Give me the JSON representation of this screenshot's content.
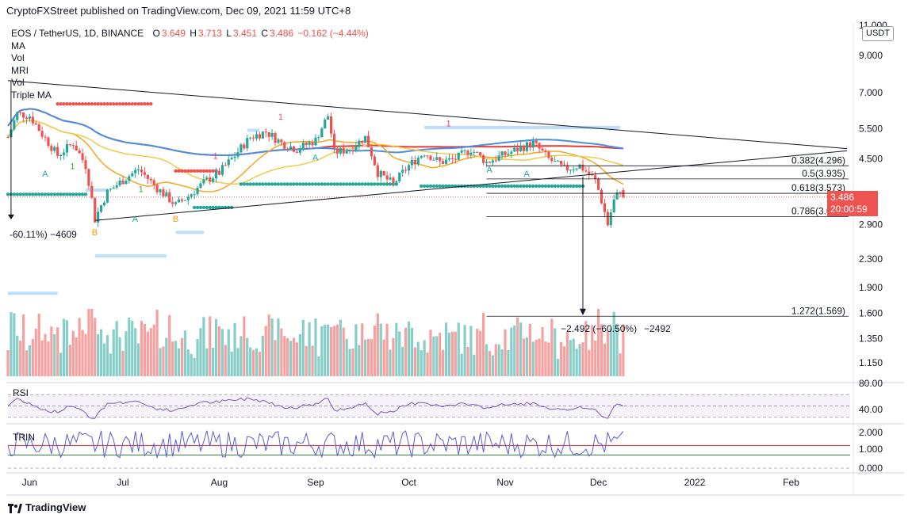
{
  "header": {
    "publisher": "CryptoFXStreet published on TradingView.com, Dec 09, 2021 11:59 UTC+8",
    "symbol": "EOS / TetherUS, 1D, BINANCE",
    "ohlc": {
      "o_label": "O",
      "o": "3.649",
      "h_label": "H",
      "h": "3.713",
      "l_label": "L",
      "l": "3.451",
      "c_label": "C",
      "c": "3.486",
      "change": "−0.162 (−4.44%)"
    },
    "indicators": [
      "MA",
      "Vol",
      "MRI",
      "Vol",
      "Triple MA"
    ]
  },
  "price_axis": {
    "currency": "USDT",
    "ticks": [
      "11.000",
      "9.000",
      "7.000",
      "5.500",
      "4.500",
      "3.486",
      "2.900",
      "2.300",
      "1.900",
      "1.600",
      "1.350",
      "1.150"
    ],
    "last_price": "3.486",
    "countdown": "20:00:59"
  },
  "time_axis": [
    "Jun",
    "Jul",
    "Aug",
    "Sep",
    "Oct",
    "Nov",
    "Dec",
    "2022",
    "Feb"
  ],
  "annotations": {
    "left_measure": "-60.11%) −4609",
    "right_measure_left": "−2.492 (−60.50%)",
    "right_measure_right": "−2492",
    "fib": [
      {
        "label": "0.382(4.296)"
      },
      {
        "label": "0.5(3.935)"
      },
      {
        "label": "0.618(3.573)"
      },
      {
        "label": "0.786(3.058)"
      },
      {
        "label": "1.272(1.569)"
      }
    ],
    "signals": [
      "A",
      "A",
      "A",
      "A",
      "A",
      "B",
      "B",
      "1",
      "1",
      "1",
      "1",
      "1"
    ]
  },
  "rsi": {
    "name": "RSI",
    "ticks": [
      "80.00",
      "40.00"
    ]
  },
  "trin": {
    "name": "TRIN",
    "ticks": [
      "2.000",
      "1.000",
      "0.000"
    ]
  },
  "footer": {
    "brand": "TradingView"
  },
  "colors": {
    "up": "#26a69a",
    "down": "#ef5350",
    "ma_red": "#e53935",
    "ma_blue": "#4a90e2",
    "ma_orange": "#f5a623",
    "ma_yellow": "#f2c94c",
    "rsi": "#7e57c2",
    "trin": "#5b5bd6"
  },
  "chart_data": {
    "type": "candlestick",
    "symbol": "EOS / TetherUS",
    "interval": "1D",
    "x_range": [
      "2021-05-25",
      "2022-02-20"
    ],
    "y_scale": "log",
    "y_range": [
      1.05,
      11.0
    ],
    "last": {
      "open": 3.649,
      "high": 3.713,
      "low": 3.451,
      "close": 3.486,
      "change": -0.162,
      "change_pct": -4.44
    },
    "fib_levels": [
      {
        "ratio": 0.382,
        "price": 4.296
      },
      {
        "ratio": 0.5,
        "price": 3.935
      },
      {
        "ratio": 0.618,
        "price": 3.573
      },
      {
        "ratio": 0.786,
        "price": 3.058
      },
      {
        "ratio": 1.272,
        "price": 1.569
      }
    ],
    "close_series": [
      [
        "2021-05-25",
        5.2
      ],
      [
        "2021-05-28",
        6.1
      ],
      [
        "2021-06-01",
        6.0
      ],
      [
        "2021-06-05",
        5.3
      ],
      [
        "2021-06-10",
        4.6
      ],
      [
        "2021-06-15",
        5.0
      ],
      [
        "2021-06-19",
        4.3
      ],
      [
        "2021-06-22",
        3.0
      ],
      [
        "2021-06-26",
        3.6
      ],
      [
        "2021-07-01",
        3.9
      ],
      [
        "2021-07-06",
        4.2
      ],
      [
        "2021-07-12",
        3.7
      ],
      [
        "2021-07-18",
        3.3
      ],
      [
        "2021-07-22",
        3.5
      ],
      [
        "2021-07-28",
        3.9
      ],
      [
        "2021-08-01",
        4.1
      ],
      [
        "2021-08-06",
        4.6
      ],
      [
        "2021-08-11",
        5.2
      ],
      [
        "2021-08-16",
        5.4
      ],
      [
        "2021-08-21",
        5.0
      ],
      [
        "2021-08-26",
        4.8
      ],
      [
        "2021-09-01",
        5.1
      ],
      [
        "2021-09-05",
        6.0
      ],
      [
        "2021-09-07",
        4.7
      ],
      [
        "2021-09-12",
        4.8
      ],
      [
        "2021-09-17",
        5.2
      ],
      [
        "2021-09-21",
        4.1
      ],
      [
        "2021-09-26",
        3.8
      ],
      [
        "2021-10-01",
        4.3
      ],
      [
        "2021-10-06",
        4.7
      ],
      [
        "2021-10-11",
        4.4
      ],
      [
        "2021-10-16",
        4.5
      ],
      [
        "2021-10-21",
        4.8
      ],
      [
        "2021-10-26",
        4.4
      ],
      [
        "2021-10-31",
        4.6
      ],
      [
        "2021-11-05",
        4.8
      ],
      [
        "2021-11-10",
        5.0
      ],
      [
        "2021-11-15",
        4.5
      ],
      [
        "2021-11-20",
        4.2
      ],
      [
        "2021-11-25",
        4.3
      ],
      [
        "2021-11-30",
        3.9
      ],
      [
        "2021-12-04",
        2.9
      ],
      [
        "2021-12-06",
        3.4
      ],
      [
        "2021-12-08",
        3.649
      ],
      [
        "2021-12-09",
        3.486
      ]
    ]
  }
}
